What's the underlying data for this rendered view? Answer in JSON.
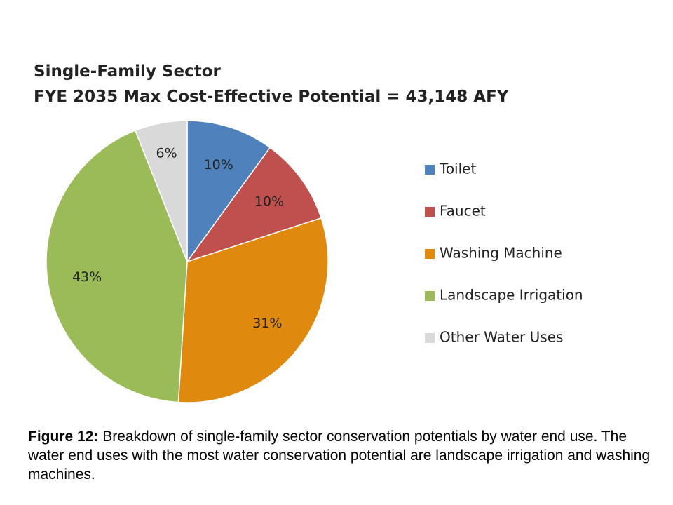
{
  "chart_data": {
    "type": "pie",
    "title": "Single-Family Sector",
    "subtitle": "FYE 2035 Max Cost-Effective Potential = 43,148 AFY",
    "legend_position": "right",
    "slices": [
      {
        "label": "Toilet",
        "value": 10,
        "display": "10%",
        "color": "#4f81bd"
      },
      {
        "label": "Faucet",
        "value": 10,
        "display": "10%",
        "color": "#c0504d"
      },
      {
        "label": "Washing Machine",
        "value": 31,
        "display": "31%",
        "color": "#e0890f"
      },
      {
        "label": "Landscape Irrigation",
        "value": 43,
        "display": "43%",
        "color": "#9bbb59"
      },
      {
        "label": "Other Water Uses",
        "value": 6,
        "display": "6%",
        "color": "#d9d9d9"
      }
    ]
  },
  "caption": {
    "label": "Figure 12:",
    "text": " Breakdown of single-family sector conservation potentials by water end use. The water end uses with the most water conservation potential are landscape irrigation and washing machines."
  }
}
